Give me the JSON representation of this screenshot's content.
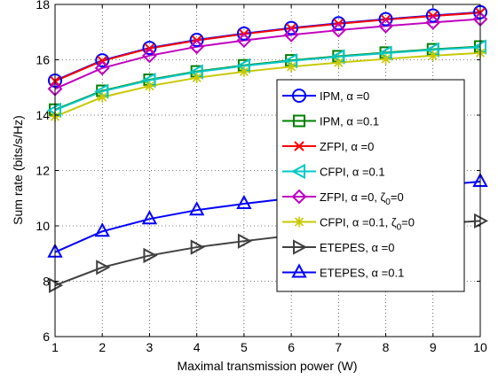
{
  "chart_data": {
    "type": "line",
    "xlabel": "Maximal transmission power (W)",
    "ylabel": "Sum rate (bits/s/Hz)",
    "xlim": [
      1,
      10
    ],
    "ylim": [
      6,
      18
    ],
    "xticks": [
      1,
      2,
      3,
      4,
      5,
      6,
      7,
      8,
      9,
      10
    ],
    "yticks": [
      6,
      8,
      10,
      12,
      14,
      16,
      18
    ],
    "grid": "dotted",
    "legend_position": "right",
    "x": [
      1,
      2,
      3,
      4,
      5,
      6,
      7,
      8,
      9,
      10
    ],
    "series": [
      {
        "name": "IPM, α =0",
        "color": "#0000ff",
        "marker": "circle",
        "values": [
          15.25,
          15.98,
          16.43,
          16.72,
          16.95,
          17.15,
          17.32,
          17.47,
          17.6,
          17.72
        ]
      },
      {
        "name": "IPM, α =0.1",
        "color": "#008000",
        "marker": "square",
        "values": [
          14.2,
          14.88,
          15.28,
          15.58,
          15.8,
          15.98,
          16.13,
          16.26,
          16.38,
          16.48
        ]
      },
      {
        "name": "ZFPI, α =0",
        "color": "#ff0000",
        "marker": "x",
        "values": [
          15.23,
          15.96,
          16.41,
          16.7,
          16.93,
          17.13,
          17.3,
          17.45,
          17.58,
          17.7
        ]
      },
      {
        "name": "CFPI, α =0.1",
        "color": "#00c8c8",
        "marker": "triangle-left",
        "values": [
          14.18,
          14.86,
          15.26,
          15.56,
          15.78,
          15.96,
          16.11,
          16.24,
          16.36,
          16.46
        ]
      },
      {
        "name": "ZFPI, α =0, ζ0=0",
        "color": "#c000c0",
        "marker": "diamond",
        "values": [
          14.95,
          15.7,
          16.15,
          16.47,
          16.7,
          16.9,
          17.07,
          17.22,
          17.35,
          17.47
        ]
      },
      {
        "name": "CFPI, α =0.1, ζ0=0",
        "color": "#c8c800",
        "marker": "asterisk",
        "values": [
          13.95,
          14.65,
          15.05,
          15.35,
          15.57,
          15.75,
          15.9,
          16.03,
          16.15,
          16.25
        ]
      },
      {
        "name": "ETEPES, α =0",
        "color": "#404040",
        "marker": "triangle-right",
        "values": [
          7.85,
          8.5,
          8.93,
          9.23,
          9.45,
          9.65,
          9.81,
          9.95,
          10.07,
          10.18
        ]
      },
      {
        "name": "ETEPES, α =0.1",
        "color": "#0000ff",
        "marker": "triangle-up",
        "values": [
          9.05,
          9.8,
          10.25,
          10.57,
          10.8,
          11.0,
          11.15,
          11.3,
          11.45,
          11.6
        ]
      }
    ],
    "legend": [
      {
        "prefix": "IPM, α =0",
        "sub": "",
        "suffix": ""
      },
      {
        "prefix": "IPM, α =0.1",
        "sub": "",
        "suffix": ""
      },
      {
        "prefix": "ZFPI, α =0",
        "sub": "",
        "suffix": ""
      },
      {
        "prefix": "CFPI, α =0.1",
        "sub": "",
        "suffix": ""
      },
      {
        "prefix": "ZFPI, α =0, ζ",
        "sub": "0",
        "suffix": "=0"
      },
      {
        "prefix": "CFPI, α =0.1, ζ",
        "sub": "0",
        "suffix": "=0"
      },
      {
        "prefix": "ETEPES, α =0",
        "sub": "",
        "suffix": ""
      },
      {
        "prefix": "ETEPES, α =0.1",
        "sub": "",
        "suffix": ""
      }
    ]
  }
}
